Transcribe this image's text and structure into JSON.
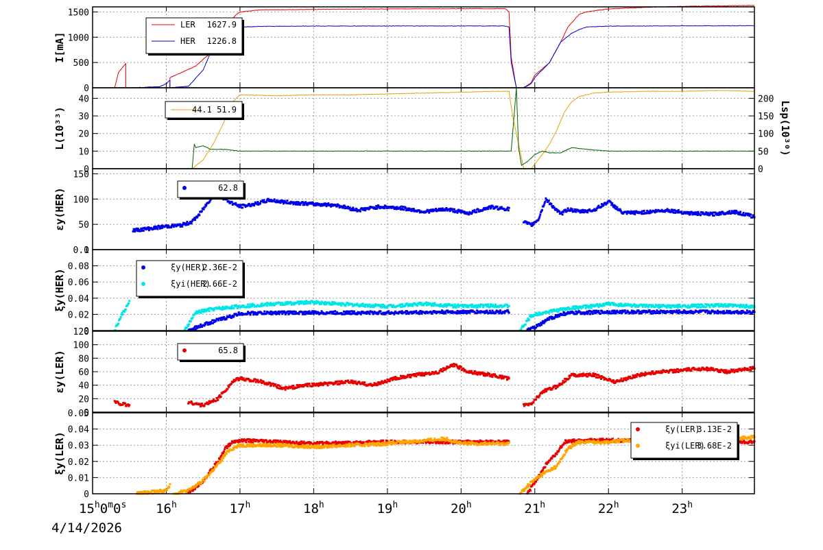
{
  "chart_data": [
    {
      "type": "line",
      "ylabel": "I[mA]",
      "ylim": [
        0,
        1600
      ],
      "yticks": [
        0,
        500,
        1000,
        1500
      ],
      "legend_placement": "top-left",
      "series": [
        {
          "name": "LER",
          "color": "#e60000",
          "legend_value": "1627.9",
          "x": [
            15.0,
            15.3,
            15.35,
            15.45,
            15.45,
            15.6,
            15.9,
            16.05,
            16.05,
            16.4,
            16.5,
            16.65,
            16.75,
            16.85,
            16.95,
            17.0,
            17.2,
            17.3,
            18.0,
            19.0,
            20.0,
            20.6,
            20.65,
            20.68,
            20.75,
            20.85,
            20.95,
            21.0,
            21.2,
            21.35,
            21.45,
            21.6,
            21.7,
            22.0,
            22.5,
            23.0,
            23.98
          ],
          "y": [
            0,
            0,
            300,
            480,
            0,
            0,
            0,
            0,
            200,
            430,
            560,
            750,
            1050,
            1300,
            1450,
            1500,
            1530,
            1540,
            1550,
            1560,
            1565,
            1565,
            1500,
            600,
            0,
            0,
            100,
            250,
            500,
            900,
            1200,
            1450,
            1500,
            1560,
            1590,
            1610,
            1628
          ]
        },
        {
          "name": "HER",
          "color": "#0000d0",
          "legend_value": "1226.8",
          "x": [
            15.0,
            15.2,
            15.5,
            15.9,
            16.0,
            16.05,
            16.05,
            16.3,
            16.5,
            16.6,
            16.7,
            16.8,
            16.9,
            17.0,
            17.3,
            18.0,
            19.0,
            20.6,
            20.65,
            20.68,
            20.75,
            20.85,
            20.95,
            21.0,
            21.2,
            21.35,
            21.5,
            21.6,
            21.7,
            22.0,
            23.0,
            23.98
          ],
          "y": [
            0,
            0,
            0,
            20,
            80,
            150,
            0,
            30,
            350,
            700,
            900,
            1050,
            1150,
            1200,
            1215,
            1220,
            1222,
            1222,
            1200,
            500,
            0,
            0,
            80,
            200,
            500,
            900,
            1080,
            1150,
            1200,
            1220,
            1224,
            1227
          ]
        }
      ]
    },
    {
      "type": "line",
      "ylabel": "L(10³³)",
      "ylim": [
        0,
        46
      ],
      "yticks": [
        0,
        10,
        20,
        30,
        40
      ],
      "y2label": "Lsp(10³⁰)",
      "y2lim": [
        0,
        230
      ],
      "y2ticks": [
        0,
        50,
        100,
        150,
        200
      ],
      "legend_placement": "top-left",
      "legend_text": "44.1 51.9",
      "series": [
        {
          "name": "L",
          "axis": "left",
          "color": "#e8a000",
          "x": [
            16.35,
            16.5,
            16.65,
            16.8,
            16.9,
            17.0,
            17.5,
            18.0,
            18.5,
            19.0,
            19.5,
            20.0,
            20.5,
            20.65,
            20.7,
            20.85,
            20.95,
            21.1,
            21.2,
            21.3,
            21.4,
            21.5,
            21.6,
            21.8,
            22.0,
            22.5,
            23.0,
            23.5,
            23.98
          ],
          "y": [
            0,
            5,
            15,
            28,
            38,
            42,
            41.5,
            42,
            42,
            42.5,
            43,
            43.5,
            44,
            44,
            30,
            0,
            0,
            8,
            14,
            22,
            32,
            38,
            41,
            43,
            43.5,
            44,
            44,
            44.5,
            44
          ]
        },
        {
          "name": "Lsp",
          "axis": "right",
          "color": "#006400",
          "x": [
            16.35,
            16.38,
            16.4,
            16.5,
            16.6,
            16.7,
            16.8,
            17.0,
            17.5,
            18.0,
            19.0,
            20.0,
            20.6,
            20.68,
            20.75,
            20.78,
            20.82,
            20.9,
            21.0,
            21.1,
            21.2,
            21.35,
            21.5,
            21.7,
            22.0,
            23.0,
            23.98
          ],
          "y": [
            0,
            70,
            60,
            65,
            55,
            55,
            55,
            50,
            50,
            50,
            50,
            50,
            50,
            50,
            230,
            60,
            10,
            20,
            40,
            50,
            45,
            45,
            60,
            55,
            50,
            50,
            50
          ]
        }
      ]
    },
    {
      "type": "scatter",
      "ylabel": "εy(HER)",
      "ylim": [
        0,
        160
      ],
      "yticks": [
        0,
        50,
        100,
        150
      ],
      "legend_placement": "top-left",
      "series": [
        {
          "name": "εy(HER)",
          "color": "#0000e6",
          "legend_value": "62.8",
          "segments": [
            {
              "x": [
                15.55,
                15.8,
                16.0,
                16.2,
                16.35,
                16.45,
                16.55,
                16.65,
                16.75,
                16.85,
                17.0,
                17.2,
                17.4,
                17.6,
                17.8,
                18.0,
                18.3,
                18.6,
                18.9,
                19.2,
                19.5,
                19.8,
                20.1,
                20.4,
                20.65
              ],
              "y": [
                38,
                42,
                46,
                48,
                55,
                70,
                90,
                110,
                105,
                95,
                85,
                90,
                98,
                94,
                92,
                90,
                88,
                78,
                85,
                82,
                75,
                80,
                72,
                84,
                80
              ]
            },
            {
              "x": [
                20.85,
                20.95,
                21.05,
                21.15,
                21.25,
                21.35,
                21.45,
                21.6,
                21.8,
                22.0,
                22.2,
                22.5,
                22.8,
                23.1,
                23.4,
                23.7,
                23.98
              ],
              "y": [
                55,
                48,
                60,
                100,
                85,
                70,
                80,
                75,
                78,
                95,
                72,
                74,
                78,
                72,
                70,
                75,
                65
              ]
            }
          ]
        }
      ]
    },
    {
      "type": "scatter",
      "ylabel": "ξy(HER)",
      "ylim": [
        0,
        0.1
      ],
      "yticks": [
        0,
        0.02,
        0.04,
        0.06,
        0.08,
        0.1
      ],
      "legend_placement": "top-left",
      "series": [
        {
          "name": "ξy(HER)",
          "color": "#0000e6",
          "legend_value": "2.36E-2",
          "segments": [
            {
              "x": [
                16.3,
                16.5,
                16.7,
                16.9,
                17.0,
                17.5,
                18.0,
                19.0,
                20.0,
                20.65
              ],
              "y": [
                0,
                0.007,
                0.013,
                0.018,
                0.021,
                0.022,
                0.022,
                0.022,
                0.023,
                0.023
              ]
            },
            {
              "x": [
                20.9,
                21.05,
                21.2,
                21.4,
                21.6,
                22.0,
                23.0,
                23.98
              ],
              "y": [
                0,
                0.006,
                0.015,
                0.021,
                0.022,
                0.023,
                0.023,
                0.023
              ]
            }
          ]
        },
        {
          "name": "ξyi(HER)",
          "color": "#00e6e6",
          "legend_value": "2.66E-2",
          "segments": [
            {
              "x": [
                15.3,
                15.4,
                15.5
              ],
              "y": [
                0,
                0.02,
                0.035
              ]
            },
            {
              "x": [
                16.25,
                16.4,
                16.6,
                16.8,
                17.0,
                17.5,
                18.0,
                18.5,
                19.0,
                19.5,
                20.0,
                20.5,
                20.65
              ],
              "y": [
                0,
                0.022,
                0.026,
                0.028,
                0.03,
                0.033,
                0.035,
                0.032,
                0.03,
                0.033,
                0.03,
                0.031,
                0.03
              ]
            },
            {
              "x": [
                20.8,
                20.95,
                21.1,
                21.3,
                21.5,
                21.8,
                22.0,
                22.5,
                23.0,
                23.5,
                23.98
              ],
              "y": [
                0,
                0.018,
                0.022,
                0.025,
                0.028,
                0.03,
                0.033,
                0.03,
                0.03,
                0.031,
                0.03
              ]
            }
          ]
        }
      ]
    },
    {
      "type": "scatter",
      "ylabel": "εy(LER)",
      "ylim": [
        0,
        120
      ],
      "yticks": [
        0,
        20,
        40,
        60,
        80,
        100,
        120
      ],
      "legend_placement": "top-left",
      "series": [
        {
          "name": "εy(LER)",
          "color": "#e60000",
          "legend_value": "65.8",
          "segments": [
            {
              "x": [
                15.3,
                15.4,
                15.5
              ],
              "y": [
                15,
                12,
                10
              ]
            },
            {
              "x": [
                16.3,
                16.5,
                16.7,
                16.9,
                17.0,
                17.3,
                17.6,
                17.9,
                18.2,
                18.5,
                18.8,
                19.1,
                19.4,
                19.7,
                19.9,
                20.1,
                20.4,
                20.65
              ],
              "y": [
                15,
                10,
                20,
                45,
                50,
                45,
                35,
                40,
                42,
                45,
                40,
                50,
                55,
                60,
                70,
                60,
                55,
                50
              ]
            },
            {
              "x": [
                20.85,
                20.95,
                21.1,
                21.3,
                21.5,
                21.8,
                22.1,
                22.4,
                22.7,
                23.0,
                23.3,
                23.6,
                23.98
              ],
              "y": [
                10,
                12,
                30,
                38,
                55,
                55,
                45,
                55,
                60,
                62,
                65,
                60,
                65
              ]
            }
          ]
        }
      ]
    },
    {
      "type": "scatter",
      "ylabel": "ξy(LER)",
      "ylim": [
        0,
        0.05
      ],
      "yticks": [
        0,
        0.01,
        0.02,
        0.03,
        0.04,
        0.05
      ],
      "legend_placement": "top-right",
      "series": [
        {
          "name": "ξy(LER)",
          "color": "#e60000",
          "legend_value": "3.13E-2",
          "segments": [
            {
              "x": [
                16.3,
                16.5,
                16.7,
                16.8,
                16.9,
                17.0,
                17.5,
                18.0,
                19.0,
                20.0,
                20.65
              ],
              "y": [
                0,
                0.008,
                0.02,
                0.028,
                0.032,
                0.033,
                0.032,
                0.031,
                0.032,
                0.032,
                0.032
              ]
            },
            {
              "x": [
                20.9,
                21.0,
                21.15,
                21.3,
                21.4,
                21.6,
                22.0,
                22.5,
                23.0,
                23.98
              ],
              "y": [
                0,
                0.007,
                0.018,
                0.025,
                0.032,
                0.033,
                0.033,
                0.033,
                0.032,
                0.032
              ]
            }
          ]
        },
        {
          "name": "ξyi(LER)",
          "color": "#ffa500",
          "legend_value": "3.68E-2",
          "segments": [
            {
              "x": [
                15.6,
                15.8,
                16.0,
                16.05
              ],
              "y": [
                0,
                0.001,
                0.002,
                0.005
              ]
            },
            {
              "x": [
                16.1,
                16.3,
                16.5,
                16.7,
                16.85,
                17.0,
                17.5,
                18.0,
                19.0,
                19.8,
                20.0,
                20.65
              ],
              "y": [
                0,
                0.002,
                0.008,
                0.018,
                0.027,
                0.03,
                0.03,
                0.029,
                0.031,
                0.034,
                0.031,
                0.031
              ]
            },
            {
              "x": [
                20.8,
                20.95,
                21.1,
                21.3,
                21.45,
                21.6,
                22.0,
                22.5,
                23.0,
                23.98
              ],
              "y": [
                0,
                0.007,
                0.012,
                0.017,
                0.028,
                0.032,
                0.032,
                0.034,
                0.032,
                0.035
              ]
            }
          ]
        }
      ]
    }
  ],
  "x_axis": {
    "min": 15.0,
    "max": 23.98,
    "ticks": [
      {
        "value": 15,
        "label": "15",
        "sup": "h",
        "extra": "0",
        "sup2": "m",
        "extra2": "0",
        "sup3": "s"
      },
      {
        "value": 16,
        "label": "16",
        "sup": "h"
      },
      {
        "value": 17,
        "label": "17",
        "sup": "h"
      },
      {
        "value": 18,
        "label": "18",
        "sup": "h"
      },
      {
        "value": 19,
        "label": "19",
        "sup": "h"
      },
      {
        "value": 20,
        "label": "20",
        "sup": "h"
      },
      {
        "value": 21,
        "label": "21",
        "sup": "h"
      },
      {
        "value": 22,
        "label": "22",
        "sup": "h"
      },
      {
        "value": 23,
        "label": "23",
        "sup": "h"
      }
    ],
    "date": "4/14/2026"
  }
}
